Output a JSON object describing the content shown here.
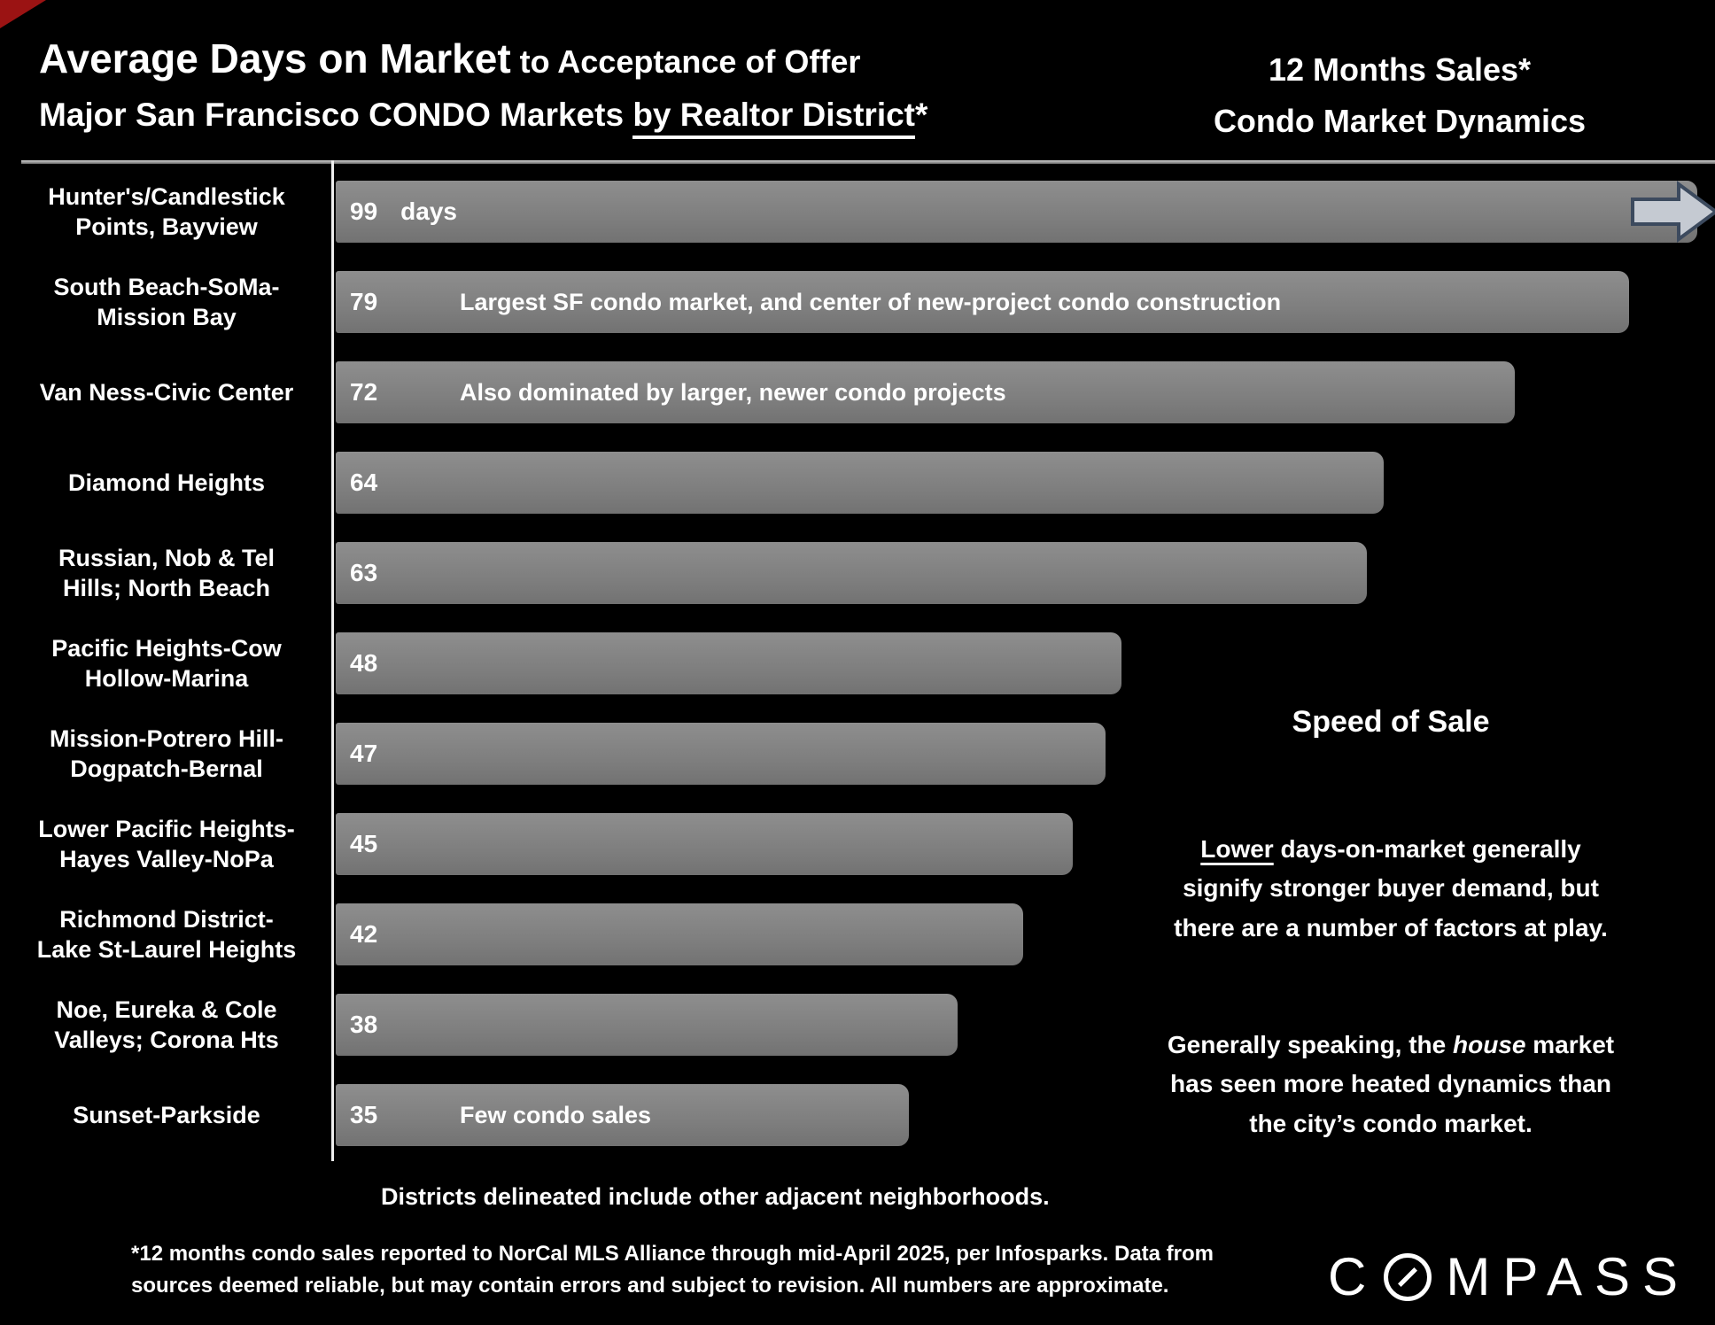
{
  "header": {
    "title_main": "Average Days on Market",
    "title_suffix": " to Acceptance of Offer",
    "subtitle_prefix": "Major San Francisco CONDO Markets ",
    "subtitle_underlined": "by Realtor District",
    "subtitle_asterisk": "*",
    "right_line1": "12 Months Sales*",
    "right_line2": "Condo Market Dynamics"
  },
  "chart_data": {
    "type": "bar",
    "orientation": "horizontal",
    "title": "Average Days on Market to Acceptance of Offer — Major San Francisco CONDO Markets by Realtor District*",
    "unit": "days",
    "xlim": [
      0,
      84.4
    ],
    "grid": false,
    "legend": false,
    "bar_color": "#7f7f7f",
    "overflow_note": "First bar (99 days) extends past the plot edge; a right arrow marks the overflow",
    "categories": [
      "Hunter's/Candlestick Points, Bayview",
      "South Beach-SoMa-Mission Bay",
      "Van Ness-Civic Center",
      "Diamond Heights",
      "Russian, Nob & Tel Hills; North Beach",
      "Pacific Heights-Cow Hollow-Marina",
      "Mission-Potrero Hill-Dogpatch-Bernal",
      "Lower Pacific Heights-Hayes Valley-NoPa",
      "Richmond District-Lake St-Laurel Heights",
      "Noe, Eureka & Cole Valleys; Corona Hts",
      "Sunset-Parkside"
    ],
    "values": [
      99,
      79,
      72,
      64,
      63,
      48,
      47,
      45,
      42,
      38,
      35
    ],
    "rows": [
      {
        "label": "Hunter's/Candlestick\nPoints, Bayview",
        "value": 99,
        "suffix": "days",
        "annotation": "",
        "overflow_arrow": true
      },
      {
        "label": "South Beach-SoMa-\nMission Bay",
        "value": 79,
        "suffix": "",
        "annotation": "Largest SF condo market, and center of new-project condo construction",
        "overflow_arrow": false
      },
      {
        "label": "Van Ness-Civic Center",
        "value": 72,
        "suffix": "",
        "annotation": "Also dominated by larger, newer condo projects",
        "overflow_arrow": false
      },
      {
        "label": "Diamond Heights",
        "value": 64,
        "suffix": "",
        "annotation": "",
        "overflow_arrow": false
      },
      {
        "label": "Russian, Nob & Tel\nHills; North Beach",
        "value": 63,
        "suffix": "",
        "annotation": "",
        "overflow_arrow": false
      },
      {
        "label": "Pacific Heights-Cow\nHollow-Marina",
        "value": 48,
        "suffix": "",
        "annotation": "",
        "overflow_arrow": false
      },
      {
        "label": "Mission-Potrero Hill-\nDogpatch-Bernal",
        "value": 47,
        "suffix": "",
        "annotation": "",
        "overflow_arrow": false
      },
      {
        "label": "Lower Pacific Heights-\nHayes Valley-NoPa",
        "value": 45,
        "suffix": "",
        "annotation": "",
        "overflow_arrow": false
      },
      {
        "label": "Richmond District-\nLake St-Laurel Heights",
        "value": 42,
        "suffix": "",
        "annotation": "",
        "overflow_arrow": false
      },
      {
        "label": "Noe, Eureka & Cole\nValleys; Corona Hts",
        "value": 38,
        "suffix": "",
        "annotation": "",
        "overflow_arrow": false
      },
      {
        "label": "Sunset-Parkside",
        "value": 35,
        "suffix": "",
        "annotation": "Few condo sales",
        "overflow_arrow": false
      }
    ],
    "arrow_fill": "#c5cad2",
    "arrow_border": "#3c4a5e"
  },
  "side_panel": {
    "heading": "Speed of Sale",
    "para1_underlined": "Lower",
    "para1_rest": " days-on-market generally\nsignify stronger buyer demand, but\nthere are a number of factors at play.",
    "para2_pre": "Generally speaking, the ",
    "para2_italic": "house",
    "para2_post": " market\nhas seen more heated dynamics than\nthe city’s condo market."
  },
  "notes": {
    "districts": "Districts delineated include other adjacent neighborhoods.",
    "footnote": "*12 months condo sales reported to NorCal MLS Alliance through mid-April 2025, per Infosparks. Data from\nsources deemed reliable, but may contain errors and subject to revision. All numbers are approximate."
  },
  "logo": {
    "brand_prefix": "C",
    "brand_suffix": "MPASS"
  },
  "colors": {
    "background": "#000000",
    "bar": "#7f7f7f",
    "text": "#ffffff",
    "corner_accent": "#9b1313"
  }
}
